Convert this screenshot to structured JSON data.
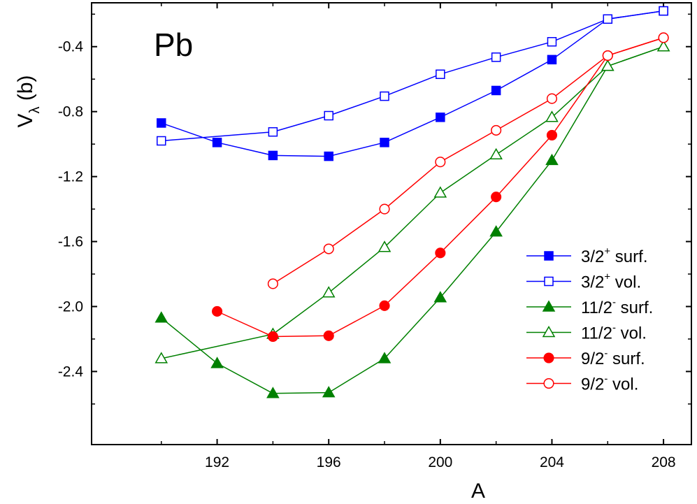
{
  "chart_data": {
    "type": "line",
    "annotation": "Pb",
    "xlabel": "A",
    "ylabel": {
      "main": "V",
      "subscript": "λ",
      "unit": " (b)"
    },
    "xlim": [
      187.5,
      209
    ],
    "ylim": [
      -2.85,
      -0.13
    ],
    "xticks": [
      192,
      196,
      200,
      204,
      208
    ],
    "yticks": [
      -2.4,
      -2.0,
      -1.6,
      -1.2,
      -0.8,
      -0.4
    ],
    "xtick_labels": [
      "192",
      "196",
      "200",
      "204",
      "208"
    ],
    "ytick_labels": [
      "-2.4",
      "-2.0",
      "-1.6",
      "-1.2",
      "-0.8",
      "-0.4"
    ],
    "grid": false,
    "legend_position": "bottom-right",
    "series": [
      {
        "label": "3/2",
        "sup": "+",
        "suffix": " surf.",
        "color": "#0000ff",
        "marker": "square",
        "filled": true,
        "points": [
          [
            190,
            -0.87
          ],
          [
            192,
            -0.99
          ],
          [
            194,
            -1.07
          ],
          [
            196,
            -1.075
          ],
          [
            198,
            -0.99
          ],
          [
            200,
            -0.835
          ],
          [
            202,
            -0.67
          ],
          [
            204,
            -0.48
          ],
          [
            206,
            -0.23
          ],
          [
            208,
            -0.18
          ]
        ]
      },
      {
        "label": "3/2",
        "sup": "+",
        "suffix": " vol.",
        "color": "#0000ff",
        "marker": "square",
        "filled": false,
        "points": [
          [
            190,
            -0.98
          ],
          [
            194,
            -0.925
          ],
          [
            196,
            -0.825
          ],
          [
            198,
            -0.705
          ],
          [
            200,
            -0.57
          ],
          [
            202,
            -0.465
          ],
          [
            204,
            -0.37
          ],
          [
            206,
            -0.23
          ],
          [
            208,
            -0.18
          ]
        ]
      },
      {
        "label": "11/2",
        "sup": "-",
        "suffix": " surf.",
        "color": "#008000",
        "marker": "triangle",
        "filled": true,
        "points": [
          [
            190,
            -2.07
          ],
          [
            192,
            -2.35
          ],
          [
            194,
            -2.535
          ],
          [
            196,
            -2.53
          ],
          [
            198,
            -2.32
          ],
          [
            200,
            -1.945
          ],
          [
            202,
            -1.54
          ],
          [
            204,
            -1.1
          ],
          [
            206,
            -0.52
          ],
          [
            208,
            -0.4
          ]
        ]
      },
      {
        "label": "11/2",
        "sup": "-",
        "suffix": " vol.",
        "color": "#008000",
        "marker": "triangle",
        "filled": false,
        "points": [
          [
            190,
            -2.32
          ],
          [
            194,
            -2.17
          ],
          [
            196,
            -1.915
          ],
          [
            198,
            -1.635
          ],
          [
            200,
            -1.3
          ],
          [
            202,
            -1.065
          ],
          [
            204,
            -0.835
          ],
          [
            206,
            -0.52
          ],
          [
            208,
            -0.4
          ]
        ]
      },
      {
        "label": "9/2",
        "sup": "-",
        "suffix": " surf.",
        "color": "#ff0000",
        "marker": "circle",
        "filled": true,
        "points": [
          [
            192,
            -2.03
          ],
          [
            194,
            -2.185
          ],
          [
            196,
            -2.18
          ],
          [
            198,
            -1.995
          ],
          [
            200,
            -1.67
          ],
          [
            202,
            -1.325
          ],
          [
            204,
            -0.945
          ],
          [
            206,
            -0.455
          ],
          [
            208,
            -0.345
          ]
        ]
      },
      {
        "label": "9/2",
        "sup": "-",
        "suffix": " vol.",
        "color": "#ff0000",
        "marker": "circle",
        "filled": false,
        "points": [
          [
            194,
            -1.86
          ],
          [
            196,
            -1.645
          ],
          [
            198,
            -1.4
          ],
          [
            200,
            -1.11
          ],
          [
            202,
            -0.915
          ],
          [
            204,
            -0.72
          ],
          [
            206,
            -0.455
          ],
          [
            208,
            -0.345
          ]
        ]
      }
    ]
  }
}
